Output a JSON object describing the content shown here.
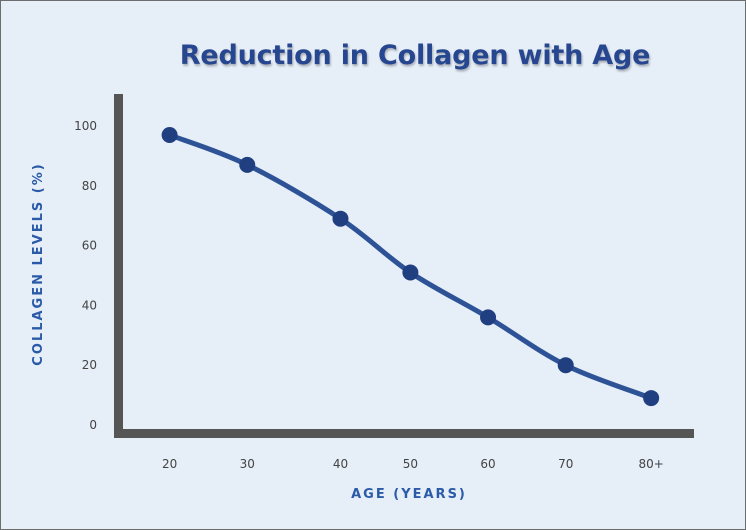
{
  "chart_data": {
    "type": "line",
    "title": "Reduction in Collagen with Age",
    "xlabel": "AGE (YEARS)",
    "ylabel": "COLLAGEN LEVELS (%)",
    "categories": [
      "20",
      "30",
      "40",
      "50",
      "60",
      "70",
      "80+"
    ],
    "x_positions": [
      19,
      29,
      41,
      50,
      60,
      70,
      81
    ],
    "series": [
      {
        "values": [
          97,
          87,
          69,
          51,
          36,
          20,
          9
        ]
      }
    ],
    "yticks": [
      0,
      20,
      40,
      60,
      80,
      100
    ],
    "ylim": [
      0,
      110
    ],
    "xlim": [
      13,
      86
    ],
    "grid": false,
    "colors": {
      "line": "#2d5296",
      "marker": "#1f3f80",
      "axis": "#555555",
      "background": "#e6eef8"
    }
  }
}
